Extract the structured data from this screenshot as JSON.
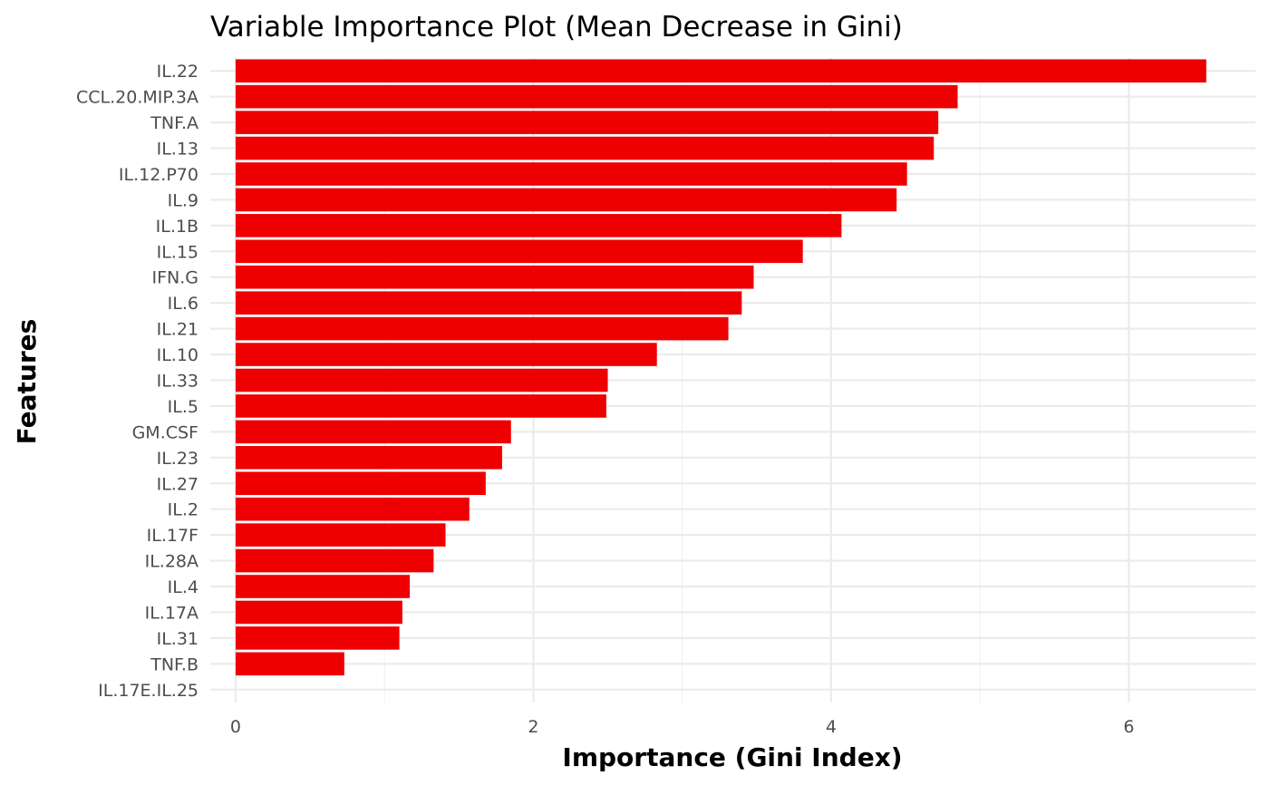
{
  "chart_data": {
    "type": "bar",
    "orientation": "horizontal",
    "title": "Variable Importance Plot (Mean Decrease in Gini)",
    "xlabel": "Importance (Gini Index)",
    "ylabel": "Features",
    "xlim": [
      -0.17,
      6.85
    ],
    "xticks": [
      0,
      2,
      4,
      6
    ],
    "bar_color": "#EE0000",
    "grid": true,
    "categories": [
      "IL.22",
      "CCL.20.MIP.3A",
      "TNF.A",
      "IL.13",
      "IL.12.P70",
      "IL.9",
      "IL.1B",
      "IL.15",
      "IFN.G",
      "IL.6",
      "IL.21",
      "IL.10",
      "IL.33",
      "IL.5",
      "GM.CSF",
      "IL.23",
      "IL.27",
      "IL.2",
      "IL.17F",
      "IL.28A",
      "IL.4",
      "IL.17A",
      "IL.31",
      "TNF.B",
      "IL.17E.IL.25"
    ],
    "values": [
      6.52,
      4.85,
      4.72,
      4.69,
      4.51,
      4.44,
      4.07,
      3.81,
      3.48,
      3.4,
      3.31,
      2.83,
      2.5,
      2.49,
      1.85,
      1.79,
      1.68,
      1.57,
      1.41,
      1.33,
      1.17,
      1.12,
      1.1,
      0.73,
      0.0
    ]
  }
}
